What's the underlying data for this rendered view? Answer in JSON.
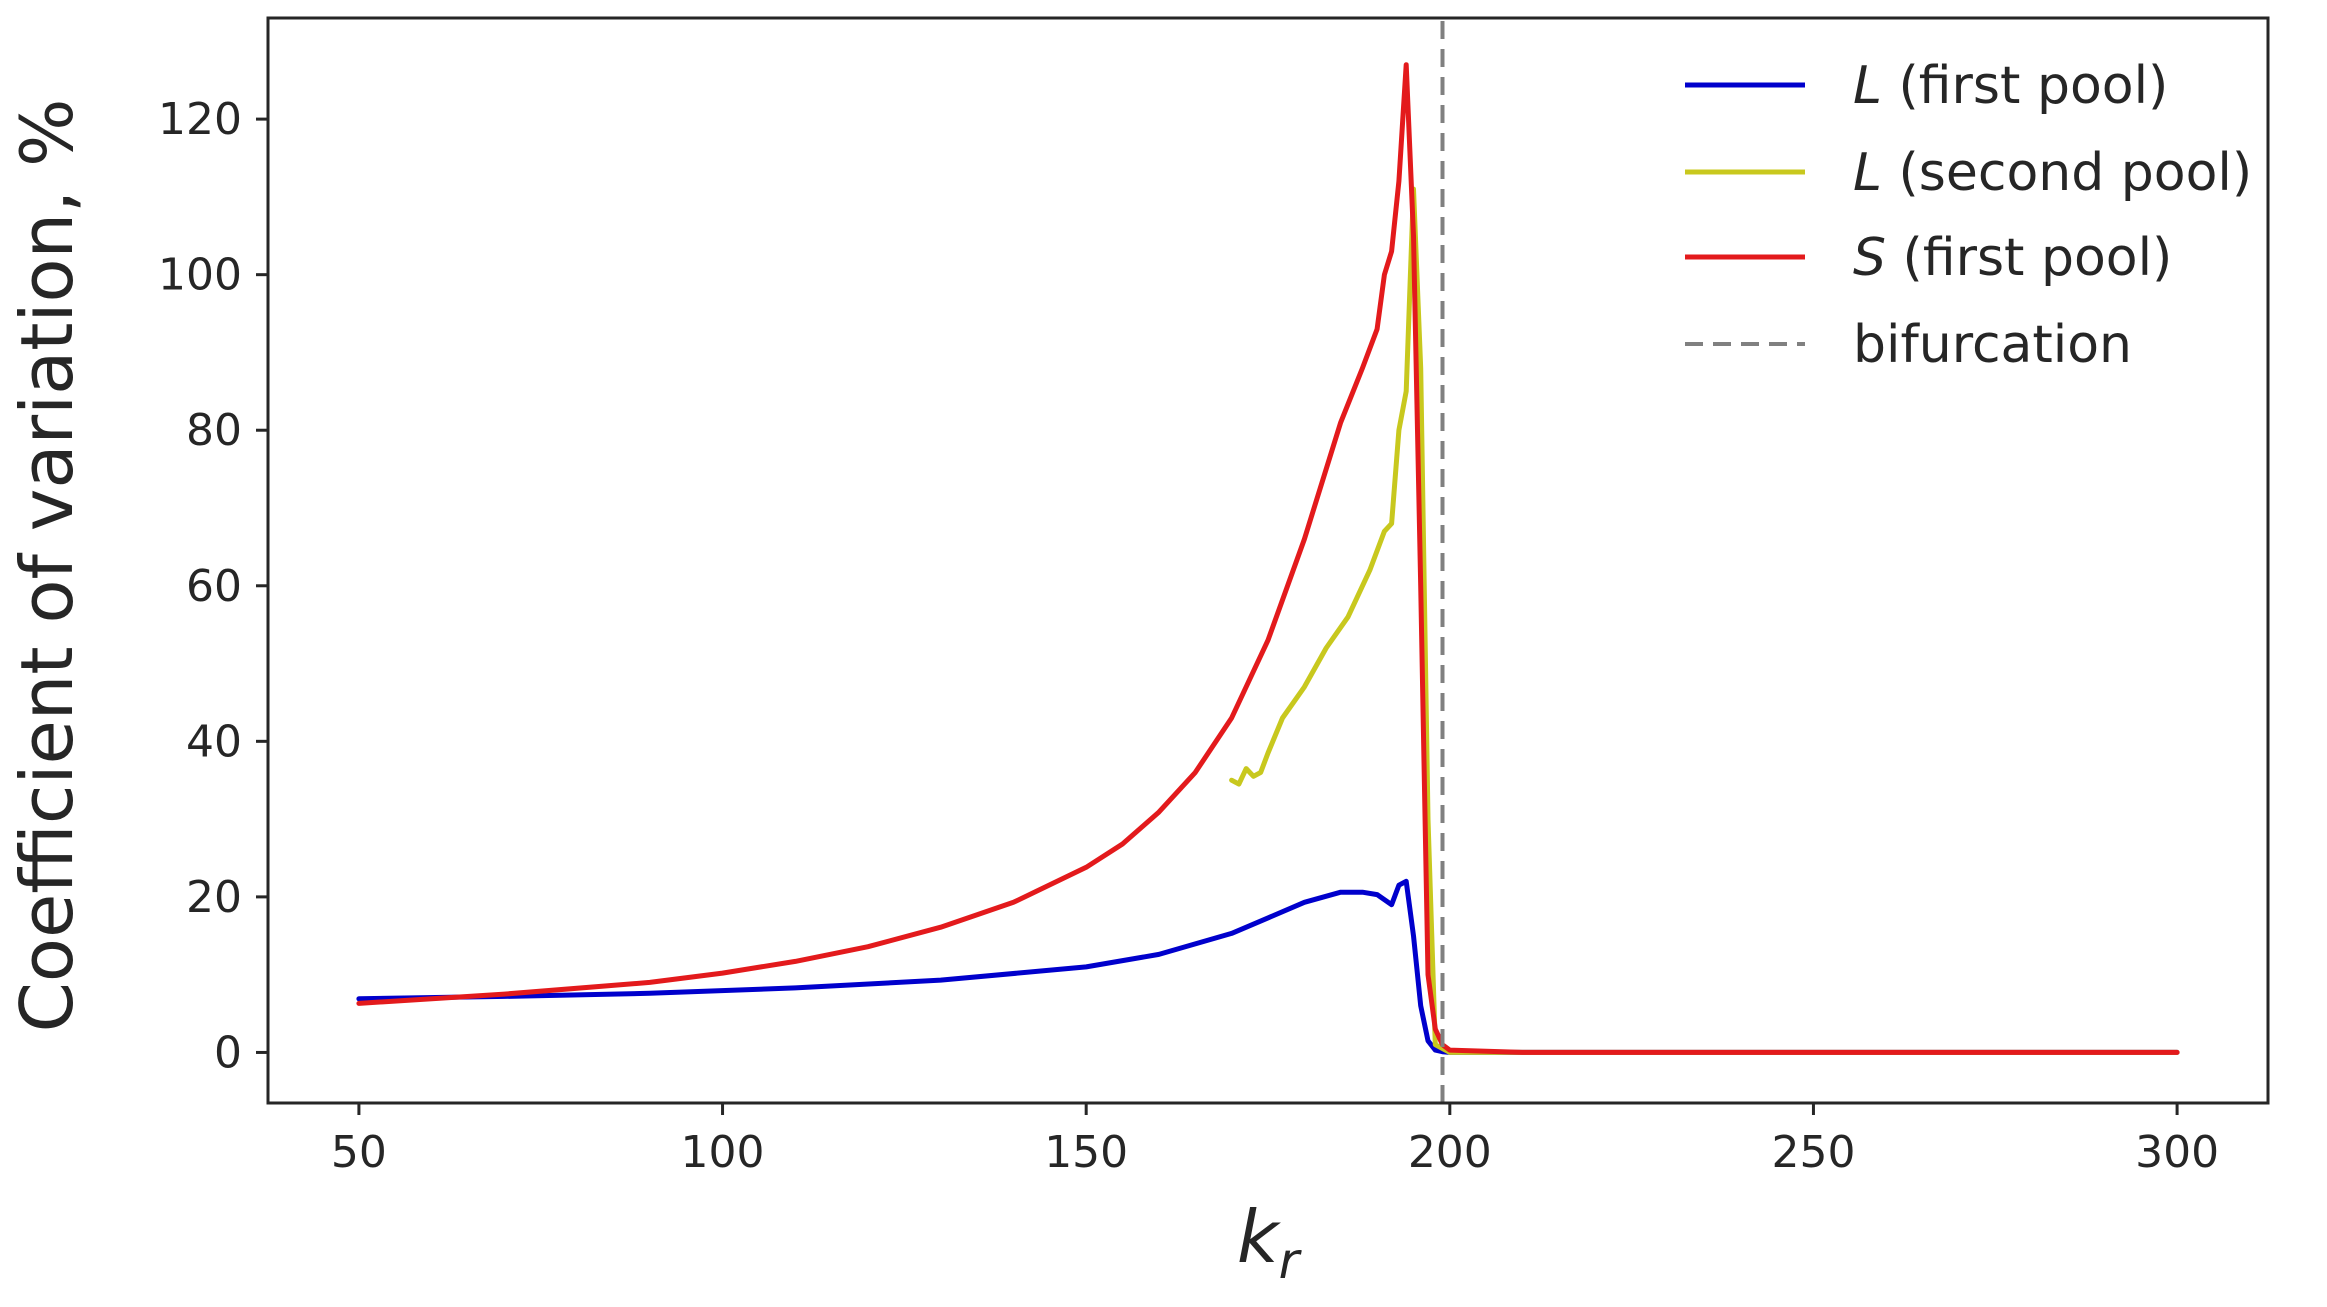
{
  "chart_data": {
    "type": "line",
    "title": "",
    "xlabel": "k",
    "xlabel_subscript": "r",
    "ylabel": "Coefficient of variation, %",
    "xlim": [
      37.5,
      312.5
    ],
    "ylim": [
      -6.5,
      133
    ],
    "xticks": [
      50,
      100,
      150,
      200,
      250,
      300
    ],
    "yticks": [
      0,
      20,
      40,
      60,
      80,
      100,
      120
    ],
    "grid": false,
    "legend_position": "top-right",
    "series": [
      {
        "name_italic": "L",
        "name_rest": " (first pool)",
        "color": "#0000cc",
        "style": "solid",
        "x": [
          50,
          70,
          90,
          110,
          130,
          150,
          160,
          170,
          175,
          180,
          185,
          188,
          190,
          192,
          193,
          194,
          195,
          196,
          197,
          198,
          199,
          200,
          210,
          250,
          300
        ],
        "y": [
          6.9,
          7.2,
          7.6,
          8.3,
          9.3,
          11.0,
          12.6,
          15.3,
          17.3,
          19.3,
          20.6,
          20.6,
          20.3,
          19.0,
          21.5,
          22.0,
          15.0,
          6.0,
          1.5,
          0.3,
          0.1,
          0.0,
          0.0,
          0.0,
          0.0
        ]
      },
      {
        "name_italic": "L",
        "name_rest": " (second pool)",
        "color": "#c8c81e",
        "style": "solid",
        "x": [
          170,
          171,
          172,
          173,
          174,
          175,
          177,
          180,
          183,
          186,
          189,
          191,
          192,
          193,
          194,
          195,
          196,
          197,
          198,
          200,
          210,
          250,
          300
        ],
        "y": [
          35.0,
          34.5,
          36.5,
          35.5,
          36.0,
          38.5,
          43.0,
          47.0,
          52.0,
          56.0,
          62.0,
          67.0,
          68.0,
          80.0,
          85.0,
          111.0,
          88.0,
          30.0,
          1.0,
          0.0,
          0.0,
          0.0,
          0.0
        ]
      },
      {
        "name_italic": "S",
        "name_rest": " (first pool)",
        "color": "#e31a1c",
        "style": "solid",
        "x": [
          50,
          70,
          90,
          100,
          110,
          120,
          130,
          140,
          150,
          155,
          160,
          165,
          170,
          175,
          180,
          185,
          188,
          190,
          191,
          192,
          193,
          194,
          195,
          196,
          197,
          198,
          199,
          200,
          210,
          250,
          300
        ],
        "y": [
          6.3,
          7.5,
          9.0,
          10.2,
          11.7,
          13.6,
          16.1,
          19.3,
          23.8,
          26.8,
          30.9,
          36.0,
          43.0,
          53.0,
          66.0,
          81.0,
          88.0,
          93.0,
          100.0,
          103.0,
          112.0,
          127.0,
          105.0,
          60.0,
          10.0,
          3.0,
          1.0,
          0.3,
          0.0,
          0.0,
          0.0
        ]
      },
      {
        "name": "bifurcation",
        "color": "#808080",
        "style": "dashed",
        "x": [
          199,
          199
        ],
        "y": [
          -6.5,
          133
        ]
      }
    ]
  }
}
